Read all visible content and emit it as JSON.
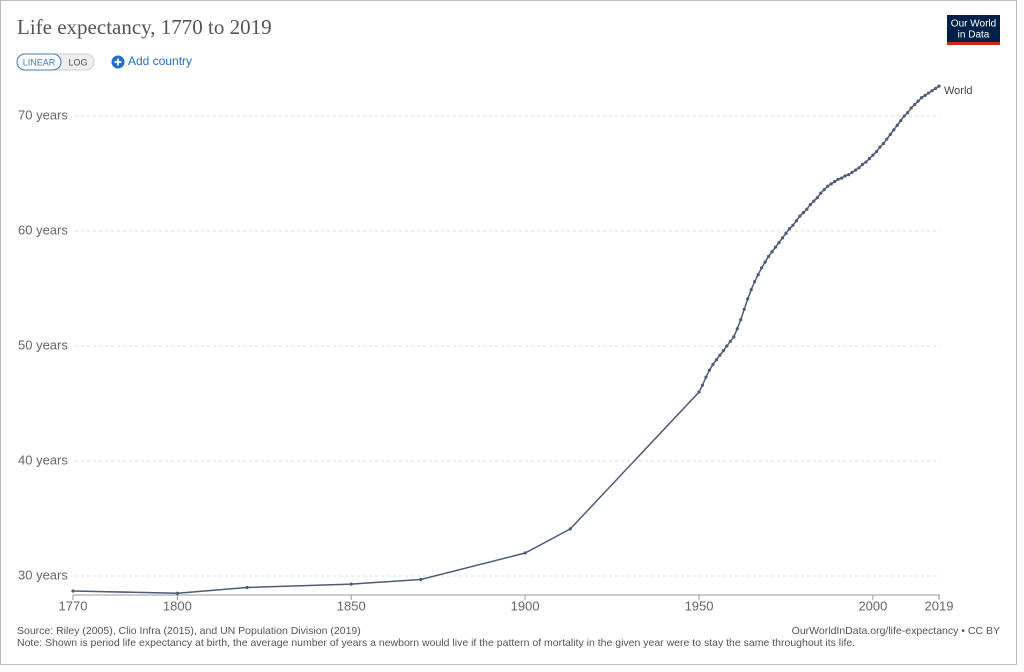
{
  "chart_data": {
    "type": "line",
    "title": "Life expectancy, 1770 to 2019",
    "scale_buttons": [
      "LINEAR",
      "LOG"
    ],
    "add_button": "Add country",
    "logo": [
      "Our World",
      "in Data"
    ],
    "source": "Source: Riley (2005), Clio Infra (2015), and UN Population Division (2019)",
    "note": "Note: Shown is period life expectancy at birth, the average number of years a newborn would live if the pattern of mortality in the given year were to stay the same throughout its life.",
    "url": "OurWorldInData.org/life-expectancy • CC BY",
    "x": [
      1770,
      1800,
      1820,
      1850,
      1870,
      1900,
      1913,
      1950,
      1951,
      1952,
      1953,
      1954,
      1955,
      1956,
      1957,
      1958,
      1959,
      1960,
      1961,
      1962,
      1963,
      1964,
      1965,
      1966,
      1967,
      1968,
      1969,
      1970,
      1971,
      1972,
      1973,
      1974,
      1975,
      1976,
      1977,
      1978,
      1979,
      1980,
      1981,
      1982,
      1983,
      1984,
      1985,
      1986,
      1987,
      1988,
      1989,
      1990,
      1991,
      1992,
      1993,
      1994,
      1995,
      1996,
      1997,
      1998,
      1999,
      2000,
      2001,
      2002,
      2003,
      2004,
      2005,
      2006,
      2007,
      2008,
      2009,
      2010,
      2011,
      2012,
      2013,
      2014,
      2015,
      2016,
      2017,
      2018,
      2019
    ],
    "series": [
      {
        "name": "World",
        "color": "#4c5b78",
        "values": [
          28.7,
          28.5,
          29.0,
          29.3,
          29.7,
          32.0,
          34.1,
          46.0,
          46.6,
          47.3,
          47.9,
          48.4,
          48.8,
          49.2,
          49.6,
          50.0,
          50.4,
          50.8,
          51.5,
          52.3,
          53.2,
          54.1,
          54.9,
          55.6,
          56.2,
          56.8,
          57.3,
          57.8,
          58.2,
          58.6,
          59.0,
          59.4,
          59.8,
          60.2,
          60.5,
          60.9,
          61.3,
          61.6,
          61.9,
          62.3,
          62.6,
          62.9,
          63.3,
          63.6,
          63.9,
          64.1,
          64.3,
          64.5,
          64.6,
          64.8,
          64.9,
          65.1,
          65.3,
          65.5,
          65.8,
          66.0,
          66.3,
          66.6,
          66.9,
          67.3,
          67.6,
          68.0,
          68.4,
          68.8,
          69.2,
          69.6,
          70.0,
          70.3,
          70.7,
          71.0,
          71.3,
          71.6,
          71.8,
          72.0,
          72.2,
          72.4,
          72.6
        ]
      }
    ],
    "xlim": [
      1770,
      2019
    ],
    "xticks": [
      1770,
      1800,
      1850,
      1900,
      1950,
      2000,
      2019
    ],
    "ylim": [
      28.35,
      72.7
    ],
    "yticks": [
      {
        "value": 30,
        "label": "30 years"
      },
      {
        "value": 40,
        "label": "40 years"
      },
      {
        "value": 50,
        "label": "50 years"
      },
      {
        "value": 60,
        "label": "60 years"
      },
      {
        "value": 70,
        "label": "70 years"
      }
    ],
    "grid": true
  }
}
